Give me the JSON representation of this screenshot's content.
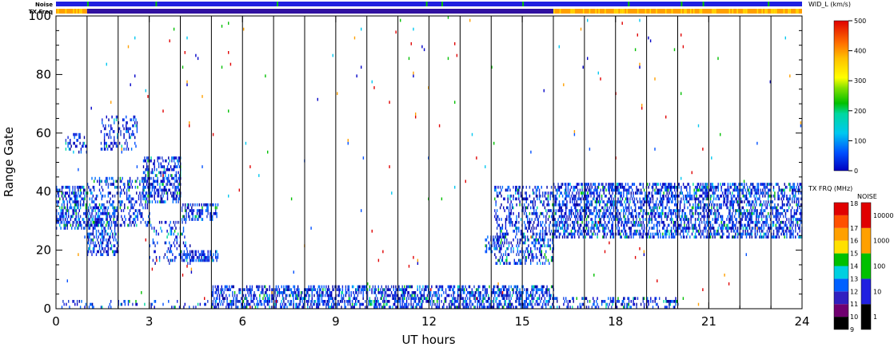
{
  "chart_data": {
    "type": "heatmap",
    "title": "",
    "xlabel": "UT hours",
    "ylabel": "Range Gate",
    "xlim": [
      0,
      24
    ],
    "ylim": [
      0,
      100
    ],
    "x_ticks": [
      "0",
      "3",
      "6",
      "9",
      "12",
      "15",
      "18",
      "21",
      "24"
    ],
    "y_ticks": [
      "0",
      "20",
      "40",
      "60",
      "80",
      "100"
    ],
    "strip_labels": {
      "noise": "Noise",
      "txfreq": "TX Freq"
    },
    "strips": {
      "noise": {
        "color": "#2020e0",
        "green_marks_at_hours": [
          1.0,
          3.2,
          7.1,
          11.9,
          12.4,
          15.0,
          18.4,
          20.1,
          20.8,
          22.9
        ]
      },
      "txfreq": {
        "segments": [
          {
            "from": 0.0,
            "to": 1.0,
            "color": "#ffa000"
          },
          {
            "from": 1.0,
            "to": 16.0,
            "color": "#3010a0"
          },
          {
            "from": 16.0,
            "to": 24.0,
            "color": "#ffa000"
          }
        ]
      }
    },
    "width_colorbar": {
      "title": "WID_L (km/s)",
      "range": [
        0,
        500
      ],
      "ticks": [
        "0",
        "100",
        "200",
        "300",
        "400",
        "500"
      ]
    },
    "txfreq_colorbar": {
      "title": "TX FRQ (MHz)",
      "ticks": [
        "9",
        "10",
        "11",
        "12",
        "13",
        "14",
        "15",
        "16",
        "17",
        "18"
      ],
      "colors": [
        "#000000",
        "#700070",
        "#3020c0",
        "#0060ff",
        "#00d0e0",
        "#00c000",
        "#ffe000",
        "#ffa000",
        "#ff5000",
        "#e00000"
      ]
    },
    "noise_colorbar": {
      "title": "NOISE",
      "ticks": [
        "1",
        "10",
        "100",
        "1000",
        "10000"
      ],
      "colors": [
        "#000000",
        "#2020e0",
        "#00c000",
        "#ffa000",
        "#e00000"
      ]
    },
    "scan_boundaries_hours": [
      1,
      2,
      3,
      4,
      5,
      6,
      7,
      8,
      9,
      10,
      11,
      12,
      13,
      14,
      15,
      16,
      17,
      18,
      19,
      20,
      21,
      22,
      23
    ],
    "echo_bands": [
      {
        "t0": 0.0,
        "t1": 1.0,
        "g0": 27,
        "g1": 42,
        "density": 0.55
      },
      {
        "t0": 1.0,
        "t1": 2.0,
        "g0": 18,
        "g1": 35,
        "density": 0.45
      },
      {
        "t0": 1.0,
        "t1": 3.0,
        "g0": 28,
        "g1": 45,
        "density": 0.3
      },
      {
        "t0": 1.4,
        "t1": 2.6,
        "g0": 54,
        "g1": 66,
        "density": 0.25
      },
      {
        "t0": 0.3,
        "t1": 1.0,
        "g0": 53,
        "g1": 60,
        "density": 0.25
      },
      {
        "t0": 2.8,
        "t1": 4.0,
        "g0": 36,
        "g1": 52,
        "density": 0.45
      },
      {
        "t0": 3.0,
        "t1": 4.3,
        "g0": 15,
        "g1": 30,
        "density": 0.2
      },
      {
        "t0": 4.0,
        "t1": 5.2,
        "g0": 16,
        "g1": 20,
        "density": 0.55
      },
      {
        "t0": 4.0,
        "t1": 5.2,
        "g0": 30,
        "g1": 36,
        "density": 0.4
      },
      {
        "t0": 5.0,
        "t1": 16.0,
        "g0": 0,
        "g1": 8,
        "density": 0.5
      },
      {
        "t0": 13.8,
        "t1": 14.3,
        "g0": 19,
        "g1": 25,
        "density": 0.5
      },
      {
        "t0": 14.1,
        "t1": 16.0,
        "g0": 15,
        "g1": 42,
        "density": 0.35
      },
      {
        "t0": 16.0,
        "t1": 24.0,
        "g0": 24,
        "g1": 43,
        "density": 0.5
      },
      {
        "t0": 16.0,
        "t1": 20.0,
        "g0": 0,
        "g1": 4,
        "density": 0.3
      },
      {
        "t0": 0.0,
        "t1": 5.0,
        "g0": 0,
        "g1": 3,
        "density": 0.15
      }
    ],
    "scatter_density": 0.006
  }
}
